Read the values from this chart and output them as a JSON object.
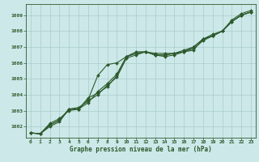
{
  "xlabel": "Graphe pression niveau de la mer (hPa)",
  "xlim": [
    -0.5,
    23.5
  ],
  "ylim": [
    1001.3,
    1009.7
  ],
  "yticks": [
    1002,
    1003,
    1004,
    1005,
    1006,
    1007,
    1008,
    1009
  ],
  "xticks": [
    0,
    1,
    2,
    3,
    4,
    5,
    6,
    7,
    8,
    9,
    10,
    11,
    12,
    13,
    14,
    15,
    16,
    17,
    18,
    19,
    20,
    21,
    22,
    23
  ],
  "bg_color": "#cce8e8",
  "grid_color": "#aacccc",
  "line_color": "#2d5a2d",
  "series": [
    [
      1001.6,
      1001.55,
      1002.1,
      1002.4,
      1003.1,
      1003.1,
      1003.8,
      1004.1,
      1004.5,
      1005.2,
      1006.4,
      1006.6,
      1006.7,
      1006.6,
      1006.6,
      1006.6,
      1006.7,
      1007.0,
      1007.5,
      1007.7,
      1008.0,
      1008.6,
      1009.0,
      1009.2
    ],
    [
      1001.6,
      1001.55,
      1002.1,
      1002.4,
      1003.1,
      1003.2,
      1003.6,
      1004.0,
      1004.6,
      1005.1,
      1006.3,
      1006.5,
      1006.7,
      1006.5,
      1006.5,
      1006.6,
      1006.7,
      1006.9,
      1007.4,
      1007.7,
      1008.0,
      1008.7,
      1009.1,
      1009.3
    ],
    [
      1001.6,
      1001.55,
      1002.2,
      1002.5,
      1003.0,
      1003.1,
      1003.5,
      1004.2,
      1004.7,
      1005.3,
      1006.4,
      1006.6,
      1006.7,
      1006.5,
      1006.5,
      1006.6,
      1006.8,
      1007.0,
      1007.5,
      1007.8,
      1008.0,
      1008.6,
      1009.0,
      1009.2
    ],
    [
      1001.6,
      1001.55,
      1002.0,
      1002.3,
      1003.1,
      1003.1,
      1003.7,
      1005.2,
      1005.9,
      1006.0,
      1006.4,
      1006.7,
      1006.7,
      1006.5,
      1006.4,
      1006.5,
      1006.7,
      1006.8,
      1007.5,
      1007.7,
      1008.0,
      1008.6,
      1009.0,
      1009.2
    ]
  ]
}
